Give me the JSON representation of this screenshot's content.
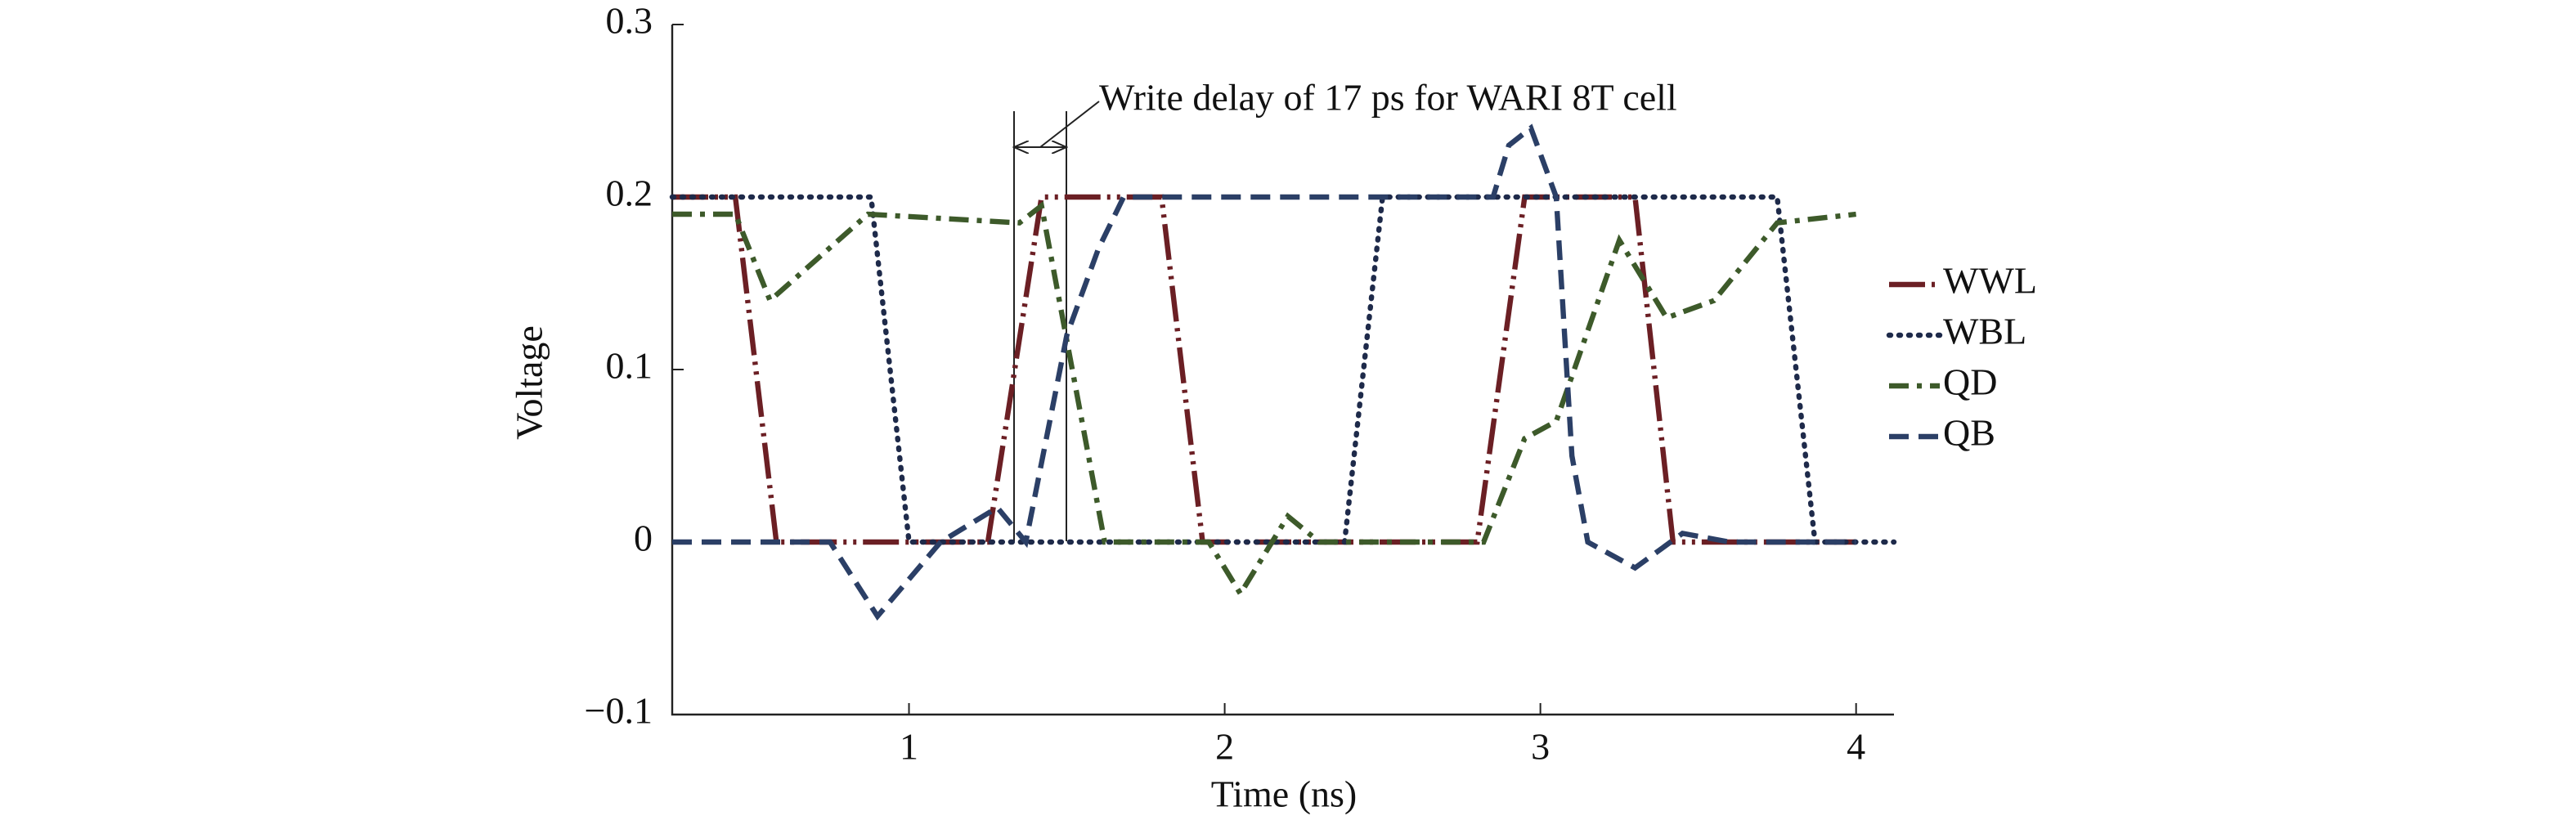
{
  "chart_data": {
    "type": "line",
    "annotation": "Write delay of 17 ps for WARI 8T cell",
    "x_label": "Time (ns)",
    "y_label": "Voltage",
    "xlim": [
      0.25,
      4.12
    ],
    "ylim": [
      -0.1,
      0.3
    ],
    "xticks": [
      1,
      2,
      3,
      4
    ],
    "yticks": [
      {
        "value": -0.1,
        "label": "−0.1"
      },
      0,
      0.1,
      0.2,
      0.3
    ],
    "legend": "right",
    "series": [
      {
        "name": "WWL",
        "color": "#6b1f24",
        "x": [
          0.25,
          0.45,
          0.58,
          1.25,
          1.42,
          1.8,
          1.93,
          2.8,
          2.95,
          3.3,
          3.42,
          4.0
        ],
        "values": [
          0.2,
          0.2,
          0,
          0,
          0.2,
          0.2,
          0,
          0,
          0.2,
          0.2,
          0,
          0
        ]
      },
      {
        "name": "WBL",
        "color": "#1e2a4a",
        "x": [
          0.25,
          0.88,
          1.0,
          2.38,
          2.5,
          3.75,
          3.87,
          4.12
        ],
        "values": [
          0.2,
          0.2,
          0,
          0,
          0.2,
          0.2,
          0,
          0
        ]
      },
      {
        "name": "QD",
        "color": "#3d5a2a",
        "x": [
          0.25,
          0.45,
          0.56,
          0.87,
          1.35,
          1.42,
          1.62,
          1.95,
          2.05,
          2.2,
          2.3,
          2.82,
          2.95,
          3.05,
          3.25,
          3.4,
          3.55,
          3.75,
          4.0
        ],
        "values": [
          0.19,
          0.19,
          0.14,
          0.19,
          0.185,
          0.195,
          0,
          0,
          -0.03,
          0.015,
          0,
          0,
          0.06,
          0.07,
          0.175,
          0.13,
          0.14,
          0.185,
          0.19
        ]
      },
      {
        "name": "QB",
        "color": "#2b3f66",
        "x": [
          0.25,
          0.75,
          0.9,
          1.1,
          1.28,
          1.37,
          1.5,
          1.6,
          1.68,
          2.85,
          2.9,
          2.97,
          3.05,
          3.1,
          3.15,
          3.3,
          3.45,
          3.6,
          4.0
        ],
        "values": [
          0,
          0,
          -0.043,
          0,
          0.02,
          0,
          0.12,
          0.17,
          0.2,
          0.2,
          0.23,
          0.24,
          0.2,
          0.05,
          0,
          -0.015,
          0.005,
          0,
          0
        ]
      }
    ]
  }
}
